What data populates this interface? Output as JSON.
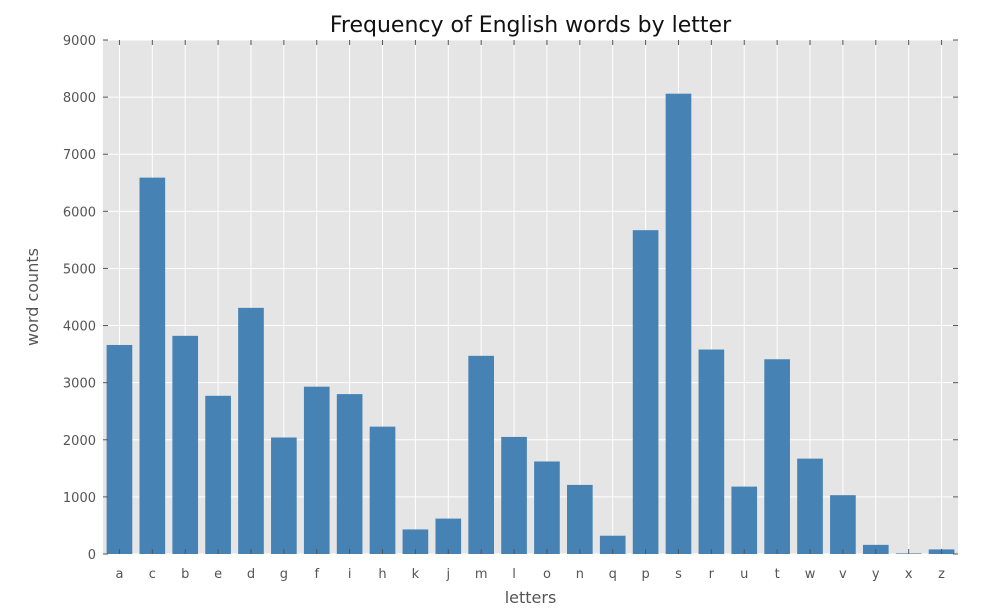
{
  "chart_data": {
    "type": "bar",
    "title": "Frequency of English words by letter",
    "xlabel": "letters",
    "ylabel": "word counts",
    "categories": [
      "a",
      "c",
      "b",
      "e",
      "d",
      "g",
      "f",
      "i",
      "h",
      "k",
      "j",
      "m",
      "l",
      "o",
      "n",
      "q",
      "p",
      "s",
      "r",
      "u",
      "t",
      "w",
      "v",
      "y",
      "x",
      "z"
    ],
    "values": [
      3660,
      6590,
      3820,
      2770,
      4310,
      2040,
      2930,
      2800,
      2230,
      430,
      620,
      3470,
      2050,
      1620,
      1210,
      320,
      5670,
      8060,
      3580,
      1180,
      3410,
      1670,
      1030,
      160,
      10,
      80
    ],
    "ylim": [
      0,
      9000
    ],
    "yticks": [
      0,
      1000,
      2000,
      3000,
      4000,
      5000,
      6000,
      7000,
      8000,
      9000
    ],
    "grid": true,
    "colors": {
      "bar": "#4682b4",
      "background": "#e5e5e5",
      "grid": "#ffffff"
    }
  }
}
